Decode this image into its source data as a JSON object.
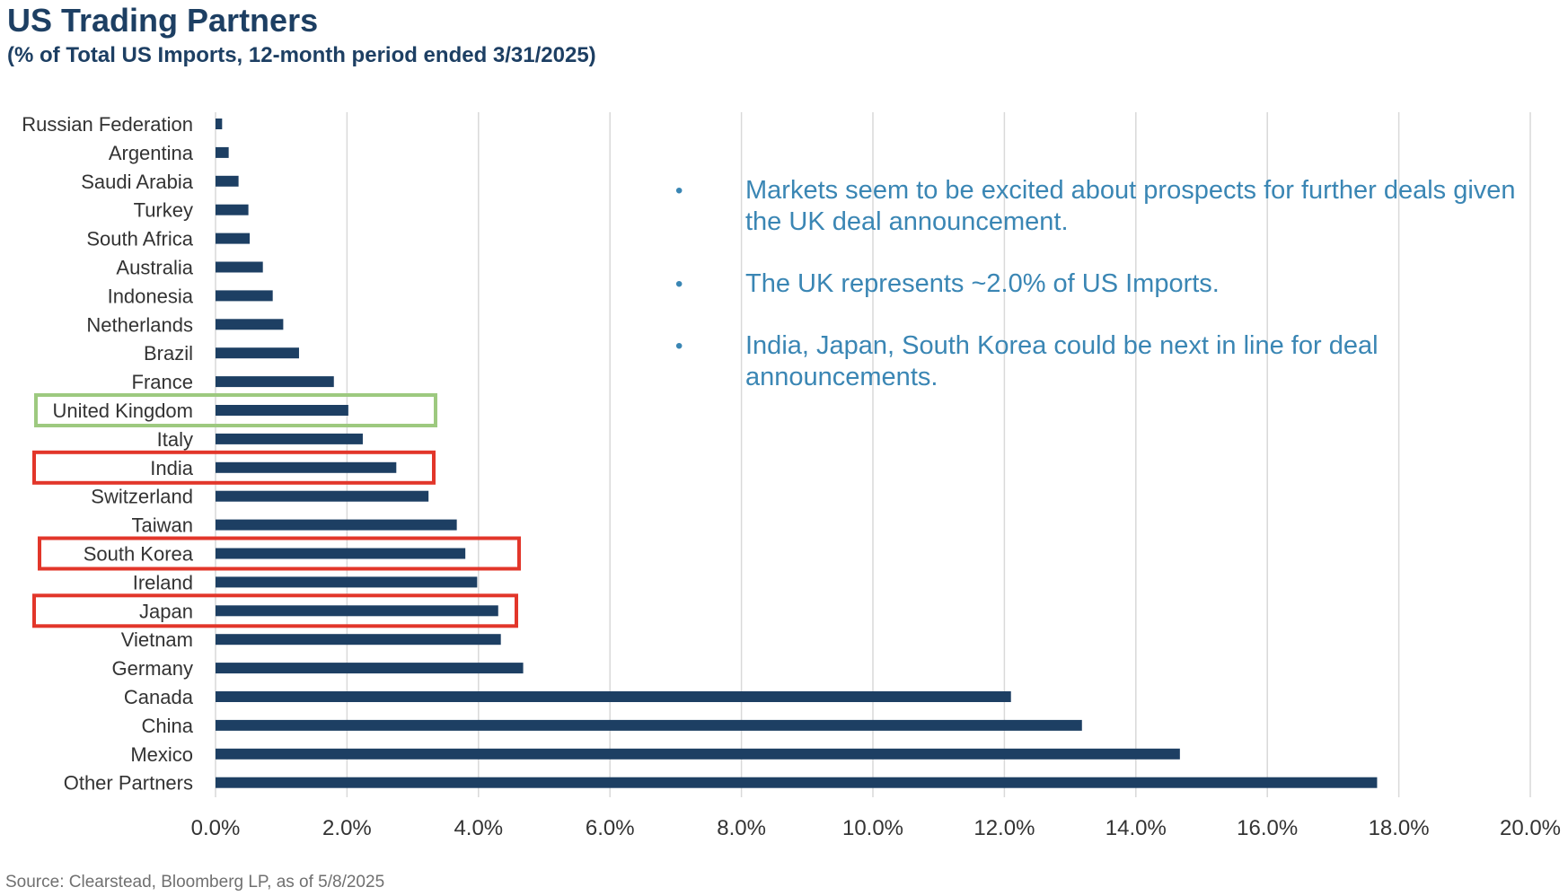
{
  "header": {
    "title": "US Trading Partners",
    "subtitle": "(% of Total US Imports, 12-month period ended 3/31/2025)"
  },
  "source": "Source: Clearstead, Bloomberg LP, as of 5/8/2025",
  "bullets": [
    "Markets seem to be excited about prospects for further deals given the UK deal announcement.",
    "The UK represents ~2.0% of US Imports.",
    "India, Japan, South Korea could be next in line for deal announcements."
  ],
  "colors": {
    "bar": "#1d3f63",
    "title": "#1d3f63",
    "bullet_text": "#3a86b4",
    "highlight_green": "#9dc97f",
    "highlight_red": "#e2362a",
    "grid": "#d9d9d9"
  },
  "chart_data": {
    "type": "bar",
    "orientation": "horizontal",
    "title": "US Trading Partners",
    "subtitle": "(% of Total US Imports, 12-month period ended 3/31/2025)",
    "categories": [
      "Russian Federation",
      "Argentina",
      "Saudi Arabia",
      "Turkey",
      "South Africa",
      "Australia",
      "Indonesia",
      "Netherlands",
      "Brazil",
      "France",
      "United Kingdom",
      "Italy",
      "India",
      "Switzerland",
      "Taiwan",
      "South Korea",
      "Ireland",
      "Japan",
      "Vietnam",
      "Germany",
      "Canada",
      "China",
      "Mexico",
      "Other Partners"
    ],
    "values": [
      0.1,
      0.2,
      0.35,
      0.5,
      0.52,
      0.72,
      0.87,
      1.03,
      1.27,
      1.8,
      2.02,
      2.24,
      2.75,
      3.24,
      3.67,
      3.8,
      3.98,
      4.3,
      4.34,
      4.68,
      12.1,
      13.18,
      14.67,
      17.67
    ],
    "xlim": [
      0,
      20
    ],
    "xticks": [
      "0.0%",
      "2.0%",
      "4.0%",
      "6.0%",
      "8.0%",
      "10.0%",
      "12.0%",
      "14.0%",
      "16.0%",
      "18.0%",
      "20.0%"
    ],
    "xlabel": "",
    "ylabel": "",
    "grid": true,
    "highlights": [
      {
        "category": "United Kingdom",
        "color": "green"
      },
      {
        "category": "India",
        "color": "red"
      },
      {
        "category": "South Korea",
        "color": "red"
      },
      {
        "category": "Japan",
        "color": "red"
      }
    ]
  }
}
